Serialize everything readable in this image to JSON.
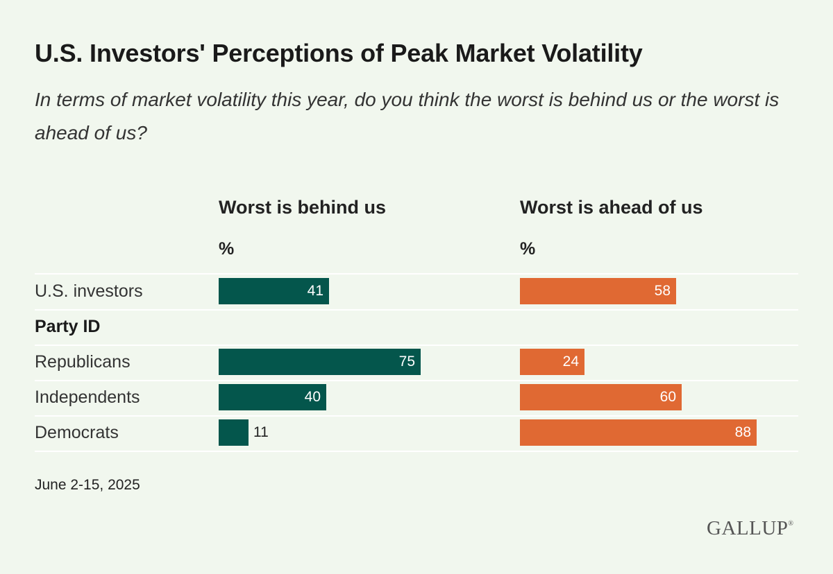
{
  "chart_data": {
    "type": "bar",
    "title": "U.S. Investors' Perceptions of Peak Market Volatility",
    "subtitle": "In terms of market volatility this year, do you think the worst is behind us or the worst is ahead of us?",
    "unit": "%",
    "categories": [
      "U.S. investors",
      "Republicans",
      "Independents",
      "Democrats"
    ],
    "group_label": "Party ID",
    "series": [
      {
        "name": "Worst is behind us",
        "color": "#04564c",
        "values": [
          41,
          75,
          40,
          11
        ]
      },
      {
        "name": "Worst is ahead of us",
        "color": "#e06933",
        "values": [
          58,
          24,
          60,
          88
        ]
      }
    ],
    "date": "June 2-15, 2025",
    "source_logo": "GALLUP"
  }
}
